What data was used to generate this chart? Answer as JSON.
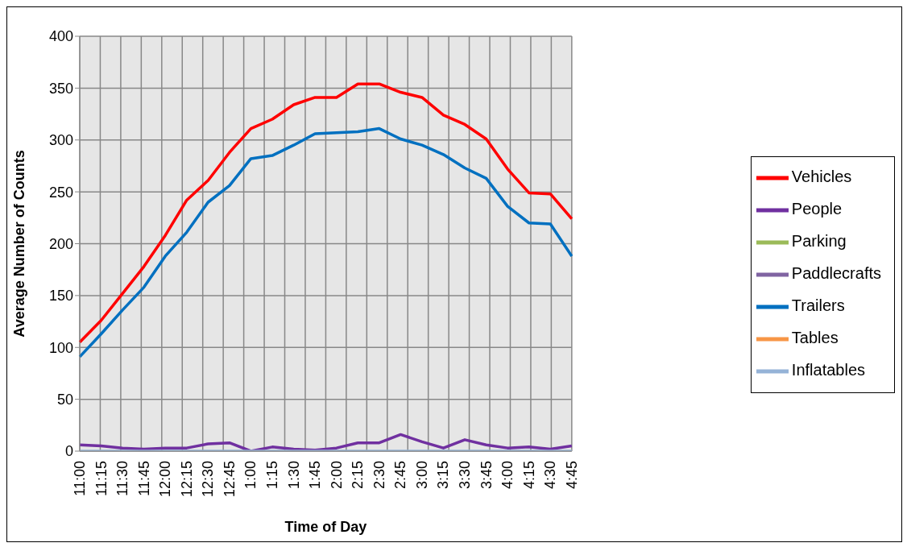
{
  "chart_data": {
    "type": "line",
    "xlabel": "Time of Day",
    "ylabel": "Average Number of Counts",
    "categories": [
      "11:00",
      "11:15",
      "11:30",
      "11:45",
      "12:00",
      "12:15",
      "12:30",
      "12:45",
      "1:00",
      "1:15",
      "1:30",
      "1:45",
      "2:00",
      "2:15",
      "2:30",
      "2:45",
      "3:00",
      "3:15",
      "3:30",
      "3:45",
      "4:00",
      "4:15",
      "4:30",
      "4:45"
    ],
    "series": [
      {
        "name": "Vehicles",
        "color": "#ff0000",
        "values": [
          105,
          126,
          152,
          178,
          208,
          242,
          261,
          288,
          311,
          320,
          334,
          341,
          341,
          354,
          354,
          346,
          341,
          324,
          315,
          301,
          272,
          249,
          248,
          224
        ]
      },
      {
        "name": "People",
        "color": "#7030a0",
        "values": [
          6,
          5,
          3,
          2,
          3,
          3,
          7,
          8,
          0,
          4,
          2,
          1,
          3,
          8,
          8,
          16,
          9,
          3,
          11,
          6,
          3,
          4,
          2,
          5
        ]
      },
      {
        "name": "Parking",
        "color": "#9bbb59",
        "values": [
          null,
          null,
          null,
          null,
          null,
          null,
          null,
          null,
          null,
          null,
          null,
          null,
          null,
          null,
          null,
          null,
          null,
          null,
          null,
          null,
          null,
          null,
          null,
          null
        ]
      },
      {
        "name": "Paddlecrafts",
        "color": "#8064a2",
        "values": [
          null,
          null,
          null,
          null,
          null,
          null,
          null,
          null,
          null,
          null,
          null,
          null,
          null,
          null,
          null,
          null,
          null,
          null,
          null,
          null,
          null,
          null,
          null,
          null
        ]
      },
      {
        "name": "Trailers",
        "color": "#0070c0",
        "values": [
          91,
          113,
          136,
          158,
          188,
          211,
          240,
          256,
          282,
          285,
          295,
          306,
          307,
          308,
          311,
          301,
          295,
          286,
          273,
          263,
          236,
          220,
          219,
          188
        ]
      },
      {
        "name": "Tables",
        "color": "#f79646",
        "values": [
          null,
          null,
          null,
          null,
          null,
          null,
          null,
          null,
          null,
          null,
          null,
          null,
          null,
          null,
          null,
          null,
          null,
          null,
          null,
          null,
          null,
          null,
          null,
          null
        ]
      },
      {
        "name": "Inflatables",
        "color": "#95b3d7",
        "values": [
          0,
          0,
          0,
          0,
          0,
          0,
          0,
          0,
          0,
          0,
          0,
          0,
          0,
          0,
          0,
          0,
          0,
          0,
          0,
          0,
          0,
          0,
          0,
          0
        ]
      }
    ],
    "ylim": [
      0,
      400
    ],
    "yticks": [
      0,
      50,
      100,
      150,
      200,
      250,
      300,
      350,
      400
    ],
    "grid": true,
    "legend": "right",
    "marker": "none",
    "line_style": "solid"
  }
}
